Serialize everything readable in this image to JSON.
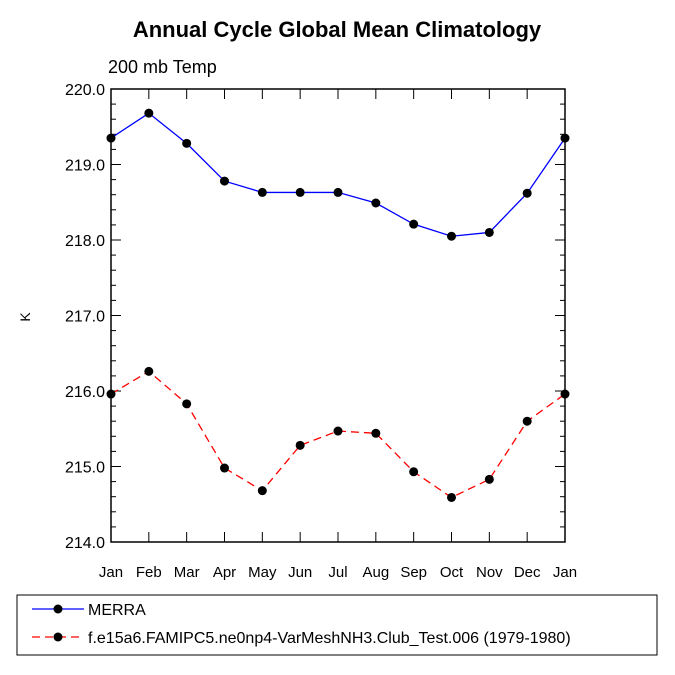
{
  "chart_data": {
    "type": "line",
    "title": "Annual Cycle Global Mean Climatology",
    "subtitle": "200 mb Temp",
    "xlabel": "",
    "ylabel": "K",
    "categories": [
      "Jan",
      "Feb",
      "Mar",
      "Apr",
      "May",
      "Jun",
      "Jul",
      "Aug",
      "Sep",
      "Oct",
      "Nov",
      "Dec",
      "Jan"
    ],
    "ylim": [
      214.0,
      220.0
    ],
    "yticks": [
      "214.0",
      "215.0",
      "216.0",
      "217.0",
      "218.0",
      "219.0",
      "220.0"
    ],
    "grid": false,
    "legend_position": "bottom",
    "series": [
      {
        "name": "MERRA",
        "color": "#0000ff",
        "line_style": "solid",
        "marker": "filled-circle",
        "values": [
          219.35,
          219.68,
          219.28,
          218.78,
          218.63,
          218.63,
          218.63,
          218.49,
          218.21,
          218.05,
          218.1,
          218.62,
          219.35
        ]
      },
      {
        "name": "f.e15a6.FAMIPC5.ne0np4-VarMeshNH3.Club_Test.006 (1979-1980)",
        "color": "#ff0000",
        "line_style": "dashed",
        "marker": "filled-circle",
        "values": [
          215.96,
          216.26,
          215.83,
          214.98,
          214.68,
          215.28,
          215.47,
          215.44,
          214.93,
          214.59,
          214.83,
          215.6,
          215.96
        ]
      }
    ]
  }
}
